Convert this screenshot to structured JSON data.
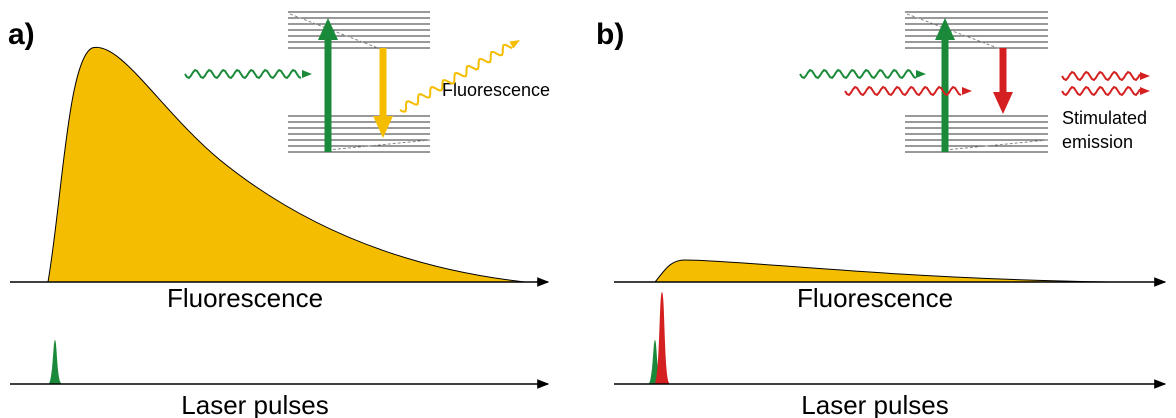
{
  "panels": [
    {
      "label": "a)",
      "diagram_label": [
        "Fluorescence"
      ],
      "signal_label": "Fluorescence",
      "pulse_label": "Laser pulses"
    },
    {
      "label": "b)",
      "diagram_label": [
        "Stimulated",
        "emission"
      ],
      "signal_label": "Fluorescence",
      "pulse_label": "Laser pulses"
    }
  ]
}
